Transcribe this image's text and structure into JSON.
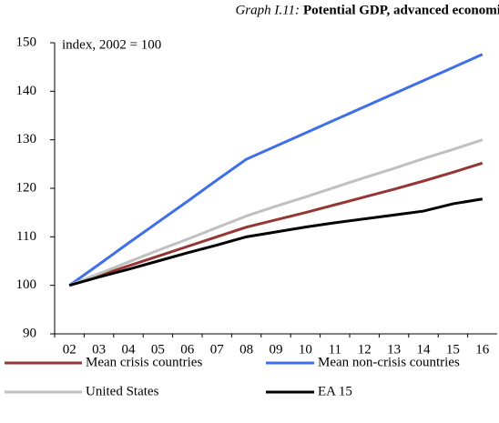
{
  "chart_data": {
    "type": "line",
    "title_label": "Graph I.11:",
    "title": "Potential GDP, advanced economies",
    "annotation": "index, 2002 = 100",
    "categories": [
      "02",
      "03",
      "04",
      "05",
      "06",
      "07",
      "08",
      "09",
      "10",
      "11",
      "12",
      "13",
      "14",
      "15",
      "16"
    ],
    "series": [
      {
        "name": "Mean crisis countries",
        "color": "#943634",
        "values": [
          100,
          102,
          104,
          106,
          108,
          110,
          112,
          113.5,
          115,
          116.6,
          118.2,
          119.8,
          121.5,
          123.3,
          125.2
        ]
      },
      {
        "name": "Mean non-crisis countries",
        "color": "#3f6fe8",
        "values": [
          100,
          104.3,
          108.7,
          113,
          117.3,
          121.7,
          126,
          128.7,
          131.4,
          134.1,
          136.8,
          139.5,
          142.2,
          144.9,
          147.6
        ]
      },
      {
        "name": "United States",
        "color": "#c0c0c0",
        "values": [
          100,
          102.4,
          104.8,
          107.2,
          109.5,
          111.9,
          114.3,
          116.3,
          118.2,
          120.2,
          122.2,
          124.1,
          126.1,
          128,
          130
        ]
      },
      {
        "name": "EA 15",
        "color": "#000000",
        "values": [
          100,
          101.7,
          103.3,
          105,
          106.7,
          108.3,
          110,
          111,
          112,
          112.9,
          113.7,
          114.5,
          115.3,
          116.8,
          117.8
        ]
      }
    ],
    "ylim": [
      90,
      150
    ],
    "yticks": [
      90,
      100,
      110,
      120,
      130,
      140,
      150
    ],
    "grid": false
  }
}
